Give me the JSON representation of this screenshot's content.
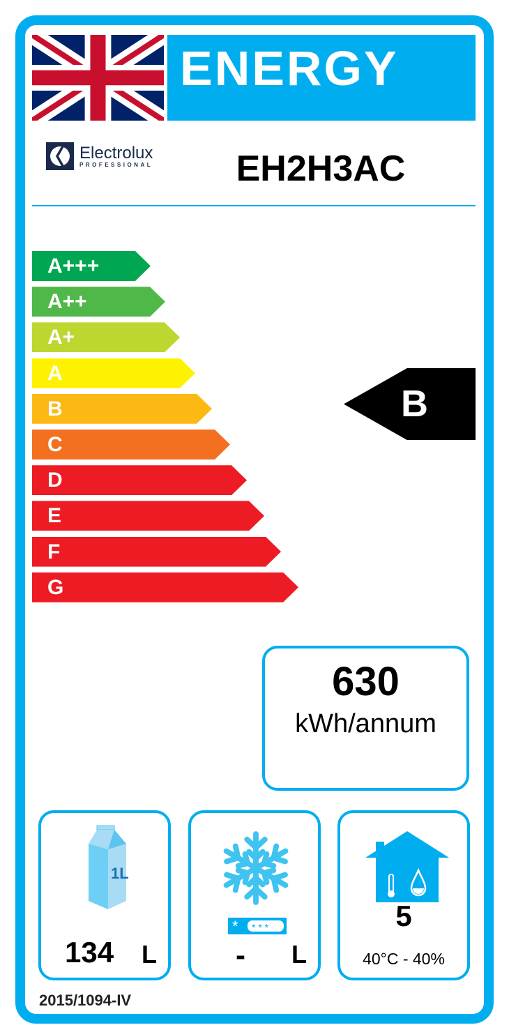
{
  "header": {
    "title": "ENERGY",
    "flag": "union-jack-flag"
  },
  "brand": {
    "name": "Electrolux",
    "sub": "PROFESSIONAL"
  },
  "model": "EH2H3AC",
  "scale": [
    {
      "label": "A+++",
      "color": "#00a651"
    },
    {
      "label": "A++",
      "color": "#50b848"
    },
    {
      "label": "A+",
      "color": "#bed630"
    },
    {
      "label": "A",
      "color": "#fff200"
    },
    {
      "label": "B",
      "color": "#fdb913"
    },
    {
      "label": "C",
      "color": "#f37021"
    },
    {
      "label": "D",
      "color": "#ed1c24"
    },
    {
      "label": "E",
      "color": "#ed1c24"
    },
    {
      "label": "F",
      "color": "#ed1c24"
    },
    {
      "label": "G",
      "color": "#ed1c24"
    }
  ],
  "rating": "B",
  "consumption": {
    "value": "630",
    "unit": "kWh/annum"
  },
  "fresh": {
    "icon": "milk-carton-icon",
    "carton_label": "1L",
    "value": "134",
    "unit": "L"
  },
  "frozen": {
    "icon": "snowflake-icon",
    "value": "-",
    "unit": "L"
  },
  "climate": {
    "icon": "house-climate-icon",
    "value": "5",
    "conditions": "40°C - 40%"
  },
  "regulation": "2015/1094-IV",
  "colors": {
    "accent": "#00aeef"
  }
}
